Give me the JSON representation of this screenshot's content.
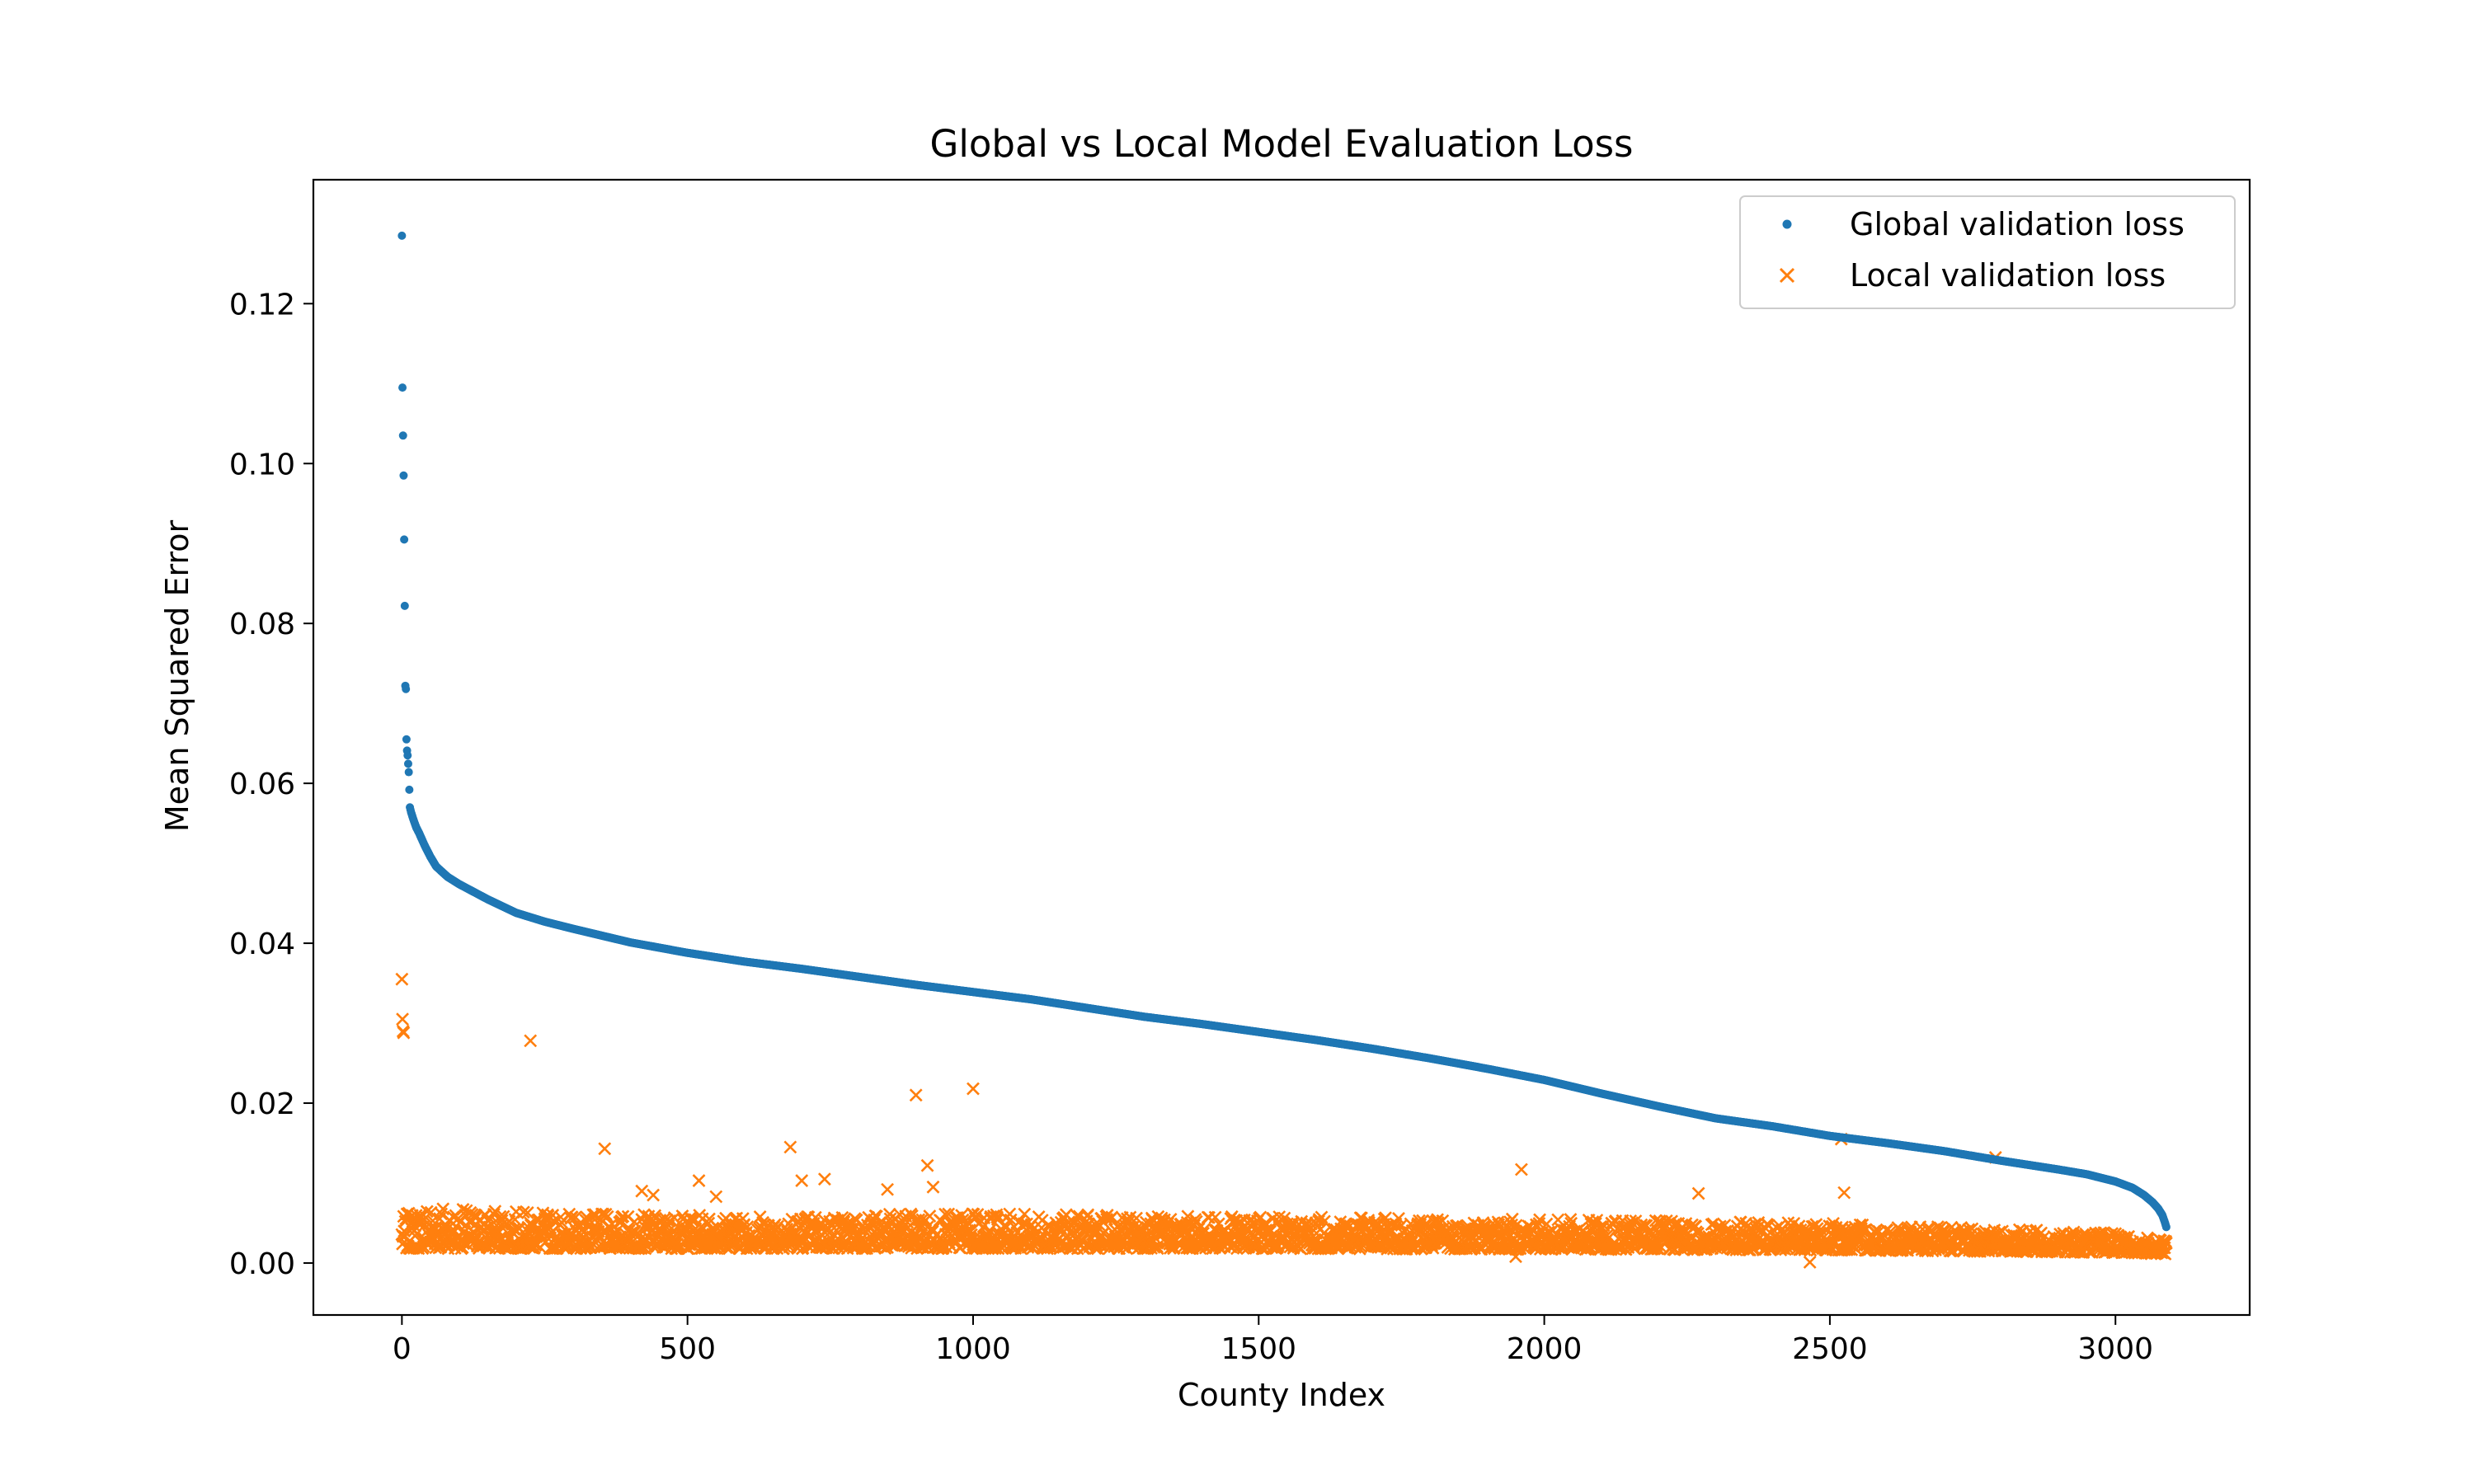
{
  "chart_data": {
    "type": "scatter",
    "title": "Global vs Local Model Evaluation Loss",
    "xlabel": "County Index",
    "ylabel": "Mean Squared Error",
    "xlim": [
      -155,
      3235
    ],
    "ylim": [
      -0.0065,
      0.1355
    ],
    "xticks": [
      0,
      500,
      1000,
      1500,
      2000,
      2500,
      3000
    ],
    "yticks": [
      0.0,
      0.02,
      0.04,
      0.06,
      0.08,
      0.1,
      0.12
    ],
    "ytick_labels": [
      "0.00",
      "0.02",
      "0.04",
      "0.06",
      "0.08",
      "0.10",
      "0.12"
    ],
    "grid": false,
    "legend_position": "top-right",
    "n_points": 3090,
    "series": [
      {
        "name": "Global validation loss",
        "marker": "dot",
        "color": "#1f77b4",
        "shape": "sorted-descending",
        "x": [
          0,
          1,
          2,
          3,
          4,
          5,
          6,
          7,
          8,
          9,
          10,
          12,
          14,
          16,
          20,
          25,
          30,
          40,
          50,
          60,
          80,
          100,
          150,
          200,
          250,
          300,
          400,
          500,
          600,
          700,
          800,
          900,
          1000,
          1100,
          1200,
          1300,
          1400,
          1500,
          1600,
          1700,
          1800,
          1900,
          2000,
          2100,
          2200,
          2300,
          2400,
          2500,
          2600,
          2700,
          2800,
          2900,
          2950,
          3000,
          3030,
          3050,
          3065,
          3075,
          3082,
          3086,
          3089
        ],
        "y": [
          0.1285,
          0.1095,
          0.1035,
          0.0985,
          0.0905,
          0.0822,
          0.0722,
          0.0718,
          0.0655,
          0.0641,
          0.0635,
          0.0614,
          0.057,
          0.0564,
          0.0555,
          0.0545,
          0.0538,
          0.0522,
          0.0508,
          0.0496,
          0.0483,
          0.0474,
          0.0455,
          0.0438,
          0.0427,
          0.0418,
          0.0401,
          0.0388,
          0.0377,
          0.0368,
          0.0358,
          0.0348,
          0.0339,
          0.033,
          0.0319,
          0.0308,
          0.0299,
          0.0289,
          0.0279,
          0.0268,
          0.0256,
          0.0243,
          0.0229,
          0.0212,
          0.0196,
          0.0181,
          0.0171,
          0.0159,
          0.015,
          0.014,
          0.0128,
          0.0117,
          0.0111,
          0.0102,
          0.0094,
          0.0085,
          0.0076,
          0.0068,
          0.006,
          0.0052,
          0.0045
        ]
      },
      {
        "name": "Local validation loss",
        "marker": "x",
        "color": "#ff7f0e",
        "baseline": {
          "x": [
            0,
            50,
            100,
            300,
            500,
            1000,
            1500,
            2000,
            2500,
            3000,
            3089
          ],
          "low": [
            0.0018,
            0.0018,
            0.0018,
            0.0018,
            0.0018,
            0.0018,
            0.0018,
            0.0017,
            0.0016,
            0.0013,
            0.0011
          ],
          "high": [
            0.0058,
            0.0078,
            0.0068,
            0.0062,
            0.006,
            0.0062,
            0.0058,
            0.0055,
            0.005,
            0.0038,
            0.0028
          ]
        },
        "outliers": {
          "x": [
            0,
            1,
            2,
            3,
            225,
            355,
            420,
            440,
            520,
            550,
            680,
            700,
            740,
            850,
            900,
            920,
            930,
            1000,
            1960,
            2270,
            2520,
            2525,
            2790,
            2465,
            1950
          ],
          "y": [
            0.0355,
            0.0305,
            0.029,
            0.0288,
            0.0278,
            0.0143,
            0.009,
            0.0085,
            0.0103,
            0.0083,
            0.0145,
            0.0103,
            0.0105,
            0.0092,
            0.021,
            0.0122,
            0.0095,
            0.0218,
            0.0117,
            0.0087,
            0.0155,
            0.0088,
            0.0132,
            0.0001,
            0.0008
          ]
        }
      }
    ]
  }
}
